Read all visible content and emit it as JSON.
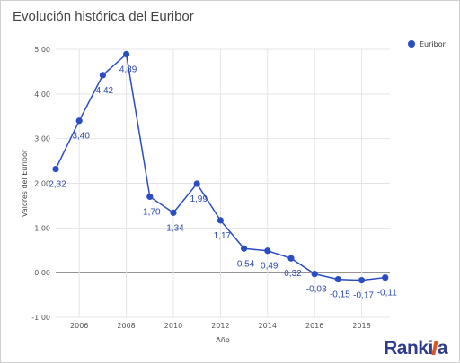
{
  "chart_data": {
    "type": "line",
    "title": "Evolución histórica del Euribor",
    "xlabel": "Año",
    "ylabel": "Valores del Euribor",
    "x": [
      2005,
      2006,
      2007,
      2008,
      2009,
      2010,
      2011,
      2012,
      2013,
      2014,
      2015,
      2016,
      2017,
      2018,
      2019
    ],
    "series": [
      {
        "name": "Euribor",
        "values": [
          2.32,
          3.4,
          4.42,
          4.89,
          1.7,
          1.34,
          1.99,
          1.17,
          0.54,
          0.49,
          0.32,
          -0.03,
          -0.15,
          -0.17,
          -0.11
        ],
        "labels": [
          "2,32",
          "3,40",
          "4,42",
          "4,89",
          "1,70",
          "1,34",
          "1,99",
          "1,17",
          "0,54",
          "0,49",
          "0,32",
          "-0,03",
          "-0,15",
          "-0,17",
          "-0,11"
        ],
        "color": "#2a4dc4"
      }
    ],
    "xlim": [
      2005,
      2019.2
    ],
    "ylim": [
      -1,
      5
    ],
    "x_ticks": [
      2006,
      2008,
      2010,
      2012,
      2014,
      2016,
      2018
    ],
    "x_tick_labels": [
      "2006",
      "2008",
      "2010",
      "2012",
      "2014",
      "2016",
      "2018"
    ],
    "y_ticks": [
      -1,
      0,
      1,
      2,
      3,
      4,
      5
    ],
    "y_tick_labels": [
      "-1,00",
      "0,00",
      "1,00",
      "2,00",
      "3,00",
      "4,00",
      "5,00"
    ],
    "grid": true,
    "legend_position": "top-right"
  },
  "branding": {
    "logo_text_a": "Ranki",
    "logo_text_b": "a"
  }
}
